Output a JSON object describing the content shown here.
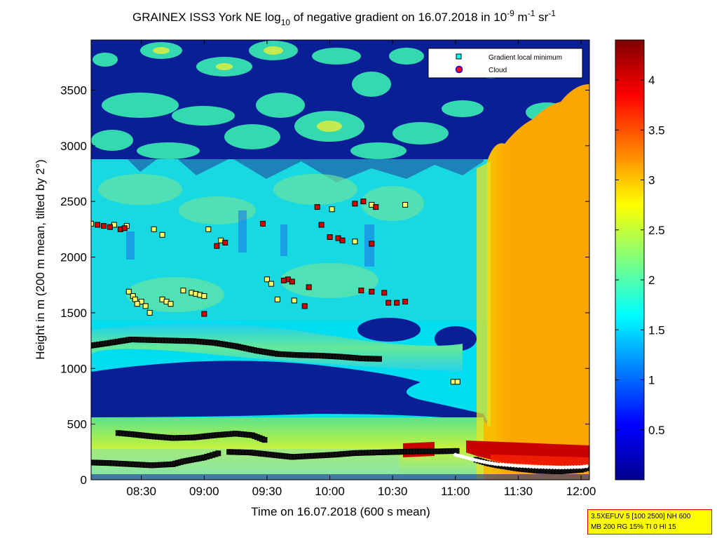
{
  "chart_data": {
    "type": "heatmap",
    "title": {
      "prefix": "GRAINEX ISS3 York NE log",
      "sub": "10",
      "middle": " of negative gradient on 16.07.2018 in 10",
      "sup1": "-9",
      "unit1": " m",
      "sup2": "-1",
      "unit2": " sr",
      "sup3": "-1"
    },
    "xlabel": "Time on 16.07.2018 (600 s mean)",
    "ylabel": "Height in m (200 m mean, tilted by 2°)",
    "x_ticks": [
      "08:30",
      "09:00",
      "09:30",
      "10:00",
      "10:30",
      "11:00",
      "11:30",
      "12:00"
    ],
    "x_tick_minutes": [
      510,
      540,
      570,
      600,
      630,
      660,
      690,
      720
    ],
    "xlim_minutes": [
      486,
      724
    ],
    "y_ticks": [
      0,
      500,
      1000,
      1500,
      2000,
      2500,
      3000,
      3500
    ],
    "ylim": [
      0,
      3950
    ],
    "colorbar": {
      "ticks": [
        "0.5",
        "1",
        "1.5",
        "2",
        "2.5",
        "3",
        "3.5",
        "4"
      ],
      "tick_values": [
        0.5,
        1,
        1.5,
        2,
        2.5,
        3,
        3.5,
        4
      ],
      "range": [
        0,
        4.4
      ]
    },
    "legend": {
      "position": "top-right",
      "entries": [
        {
          "label": "Gradient local minimum",
          "marker": "square",
          "color": "#00ffff"
        },
        {
          "label": "Cloud",
          "marker": "circle",
          "color": "#ff0000"
        }
      ]
    },
    "series": [
      {
        "name": "Gradient local minimum",
        "kind": "layer",
        "x": [
          486,
          495,
          505,
          515,
          525,
          535,
          545,
          555,
          565,
          575,
          585,
          595,
          605,
          615,
          625
        ],
        "y": [
          1205,
          1230,
          1260,
          1255,
          1250,
          1245,
          1230,
          1200,
          1160,
          1130,
          1120,
          1115,
          1105,
          1090,
          1085
        ]
      },
      {
        "name": "Gradient local minimum",
        "kind": "layer",
        "x": [
          499,
          505,
          515,
          525,
          535,
          545,
          555,
          563,
          570
        ],
        "y": [
          420,
          410,
          390,
          375,
          380,
          400,
          415,
          400,
          350
        ]
      },
      {
        "name": "Gradient local minimum",
        "kind": "layer",
        "x": [
          486,
          495,
          505,
          515,
          525,
          530,
          540,
          548
        ],
        "y": [
          155,
          150,
          140,
          130,
          140,
          165,
          200,
          245
        ]
      },
      {
        "name": "Gradient local minimum",
        "kind": "layer",
        "x": [
          552,
          562,
          572,
          582,
          592,
          602,
          612,
          622,
          632,
          642,
          652,
          662
        ],
        "y": [
          250,
          245,
          225,
          205,
          215,
          225,
          240,
          245,
          250,
          255,
          255,
          260
        ]
      },
      {
        "name": "Gradient local minimum",
        "kind": "layer",
        "x": [
          670,
          675,
          680,
          690,
          700,
          710,
          720,
          724
        ],
        "y": [
          180,
          150,
          130,
          100,
          80,
          75,
          90,
          110
        ]
      },
      {
        "name": "Gradient local minimum",
        "kind": "scatter",
        "x": [
          486,
          497,
          503,
          516,
          520,
          504,
          506,
          510,
          512,
          514,
          507,
          508,
          530,
          534,
          536,
          538,
          540,
          520,
          522,
          524,
          542,
          570,
          572,
          575,
          583,
          601,
          612,
          620,
          636,
          659,
          661,
          548
        ],
        "y": [
          2300,
          2290,
          2280,
          2250,
          2200,
          1690,
          1650,
          1600,
          1560,
          1500,
          1620,
          1580,
          1700,
          1680,
          1670,
          1660,
          1650,
          1620,
          1600,
          1580,
          2250,
          1800,
          1760,
          1620,
          1610,
          2430,
          2140,
          2470,
          2470,
          880,
          880,
          2150
        ]
      },
      {
        "name": "Cloud",
        "kind": "scatter",
        "x": [
          489,
          492,
          495,
          500,
          502,
          580,
          590,
          596,
          600,
          604,
          606,
          612,
          616,
          620,
          622,
          628,
          632,
          636,
          578,
          582,
          588,
          594,
          568,
          615,
          620,
          626,
          540,
          546,
          550
        ],
        "y": [
          2290,
          2280,
          2270,
          2250,
          2260,
          1800,
          1730,
          2290,
          2180,
          2170,
          2150,
          2480,
          2500,
          2120,
          2450,
          1590,
          1590,
          1600,
          1790,
          1780,
          1560,
          2450,
          2300,
          1700,
          1690,
          1680,
          1490,
          2100,
          2130
        ]
      },
      {
        "name": "Cloud",
        "kind": "layer",
        "x": [
          660,
          665,
          670,
          675,
          680,
          690,
          700,
          710,
          720,
          724
        ],
        "y": [
          225,
          200,
          175,
          155,
          140,
          125,
          115,
          110,
          115,
          125
        ]
      }
    ]
  },
  "info_box": {
    "line1": "3.5XEFUV 5 [100 2500] NH 600",
    "line2": "MB 200 RG 15% TI 0 HI 15"
  }
}
